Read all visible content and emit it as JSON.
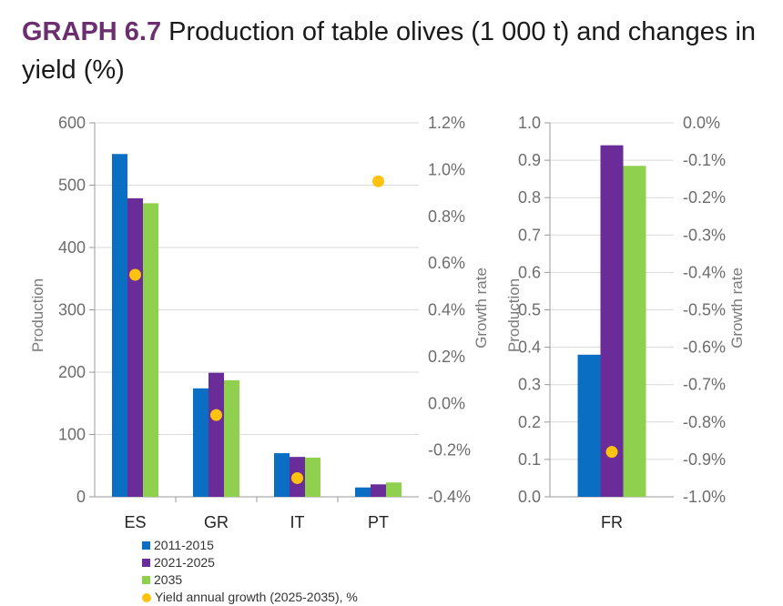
{
  "title": {
    "label": "GRAPH 6.7",
    "text": " Production of table olives (1 000 t) and changes in yield (%)"
  },
  "colors": {
    "s2011": "#0a6fc2",
    "s2021": "#6a2c98",
    "s2035": "#8fd14f",
    "yield": "#ffc20e",
    "grid": "#d9d9d9",
    "axis": "#9a9a9a"
  },
  "chart_data": [
    {
      "type": "bar",
      "categories": [
        "ES",
        "GR",
        "IT",
        "PT"
      ],
      "series": [
        {
          "name": "2011-2015",
          "values": [
            550,
            174,
            70,
            15
          ]
        },
        {
          "name": "2021-2025",
          "values": [
            479,
            199,
            64,
            20
          ]
        },
        {
          "name": "2035",
          "values": [
            471,
            187,
            63,
            23
          ]
        }
      ],
      "secondary": {
        "name": "Yield annual growth (2025-2035), %",
        "type": "scatter",
        "values": [
          0.55,
          -0.05,
          -0.32,
          0.95
        ]
      },
      "ylabel": "Production",
      "y2label": "Growth rate",
      "ylim": [
        0,
        600
      ],
      "yticks": [
        "0",
        "100",
        "200",
        "300",
        "400",
        "500",
        "600"
      ],
      "y2lim": [
        -0.4,
        1.2
      ],
      "y2ticks": [
        "-0.4%",
        "-0.2%",
        "0.0%",
        "0.2%",
        "0.4%",
        "0.6%",
        "0.8%",
        "1.0%",
        "1.2%"
      ]
    },
    {
      "type": "bar",
      "categories": [
        "FR"
      ],
      "series": [
        {
          "name": "2011-2015",
          "values": [
            0.38
          ]
        },
        {
          "name": "2021-2025",
          "values": [
            0.94
          ]
        },
        {
          "name": "2035",
          "values": [
            0.885
          ]
        }
      ],
      "secondary": {
        "name": "Yield annual growth (2025-2035), %",
        "type": "scatter",
        "values": [
          -0.88
        ]
      },
      "ylabel": "Production",
      "y2label": "Growth rate",
      "ylim": [
        0,
        1.0
      ],
      "yticks": [
        "0.0",
        "0.1",
        "0.2",
        "0.3",
        "0.4",
        "0.5",
        "0.6",
        "0.7",
        "0.8",
        "0.9",
        "1.0"
      ],
      "y2lim": [
        -1.0,
        0.0
      ],
      "y2ticks": [
        "-1.0%",
        "-0.9%",
        "-0.8%",
        "-0.7%",
        "-0.6%",
        "-0.5%",
        "-0.4%",
        "-0.3%",
        "-0.2%",
        "-0.1%",
        "0.0%"
      ]
    }
  ],
  "legend": [
    {
      "label": "2011-2015"
    },
    {
      "label": "2021-2025"
    },
    {
      "label": "2035"
    },
    {
      "label": "Yield annual growth (2025-2035), %"
    }
  ]
}
